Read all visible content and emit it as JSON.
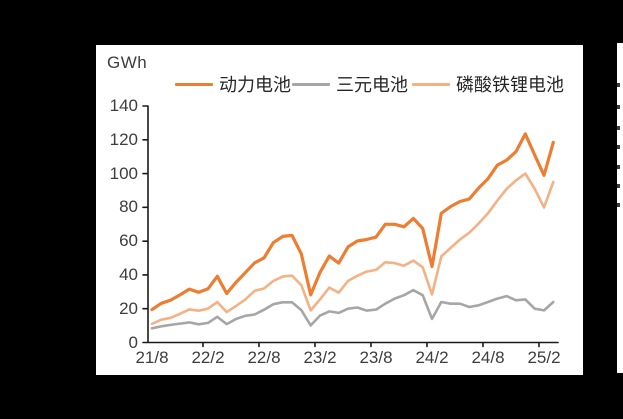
{
  "figure": {
    "background_color": "#000000",
    "panel_color": "#ffffff",
    "axis_color": "#1a1a1a",
    "label_color": "#3d3d3d"
  },
  "chart_data": {
    "type": "line",
    "title": "",
    "ylabel": "GWh",
    "xlabel": "",
    "ylim": [
      0,
      140
    ],
    "grid": false,
    "legend_position": "top",
    "y_ticks": [
      140,
      120,
      100,
      80,
      60,
      40,
      20,
      0
    ],
    "x_tick_labels": [
      "21/8",
      "22/2",
      "22/8",
      "23/2",
      "23/8",
      "24/2",
      "24/8",
      "25/2"
    ],
    "x": [
      "21/8",
      "21/9",
      "21/10",
      "21/11",
      "21/12",
      "22/1",
      "22/2",
      "22/3",
      "22/4",
      "22/5",
      "22/6",
      "22/7",
      "22/8",
      "22/9",
      "22/10",
      "22/11",
      "22/12",
      "23/1",
      "23/2",
      "23/3",
      "23/4",
      "23/5",
      "23/6",
      "23/7",
      "23/8",
      "23/9",
      "23/10",
      "23/11",
      "23/12",
      "24/1",
      "24/2",
      "24/3",
      "24/4",
      "24/5",
      "24/6",
      "24/7",
      "24/8",
      "24/9",
      "24/10",
      "24/11",
      "24/12",
      "25/1",
      "25/2",
      "25/3"
    ],
    "series": [
      {
        "name": "动力电池",
        "color": "#ED7D31",
        "stroke_width": 3.2,
        "values": [
          19.5,
          23.2,
          25.1,
          28.2,
          31.6,
          29.7,
          31.8,
          39.2,
          29.0,
          35.6,
          41.3,
          47.2,
          50.1,
          59.1,
          62.8,
          63.4,
          52.5,
          28.2,
          41.5,
          51.2,
          47.0,
          56.6,
          60.1,
          61.0,
          62.4,
          70.0,
          70.0,
          68.5,
          73.5,
          67.5,
          45.0,
          76.5,
          80.5,
          83.5,
          85.0,
          91.5,
          97.0,
          105.0,
          108.0,
          113.0,
          123.5,
          111.0,
          99.0,
          118.5
        ]
      },
      {
        "name": "三元电池",
        "color": "#A6A6A6",
        "stroke_width": 2.6,
        "values": [
          8.4,
          9.6,
          10.4,
          11.2,
          11.9,
          10.8,
          11.6,
          15.2,
          10.9,
          13.9,
          15.8,
          16.6,
          19.4,
          22.7,
          23.8,
          23.8,
          19.2,
          10.1,
          15.9,
          18.4,
          17.5,
          20.0,
          20.7,
          18.9,
          19.5,
          23.0,
          26.0,
          28.0,
          31.0,
          28.0,
          14.0,
          24.0,
          23.0,
          23.0,
          21.0,
          22.0,
          24.0,
          26.0,
          27.5,
          25.0,
          25.5,
          20.0,
          19.0,
          24.0
        ]
      },
      {
        "name": "磷酸铁锂电池",
        "color": "#F4B183",
        "stroke_width": 2.6,
        "values": [
          11.1,
          13.5,
          14.6,
          17.0,
          19.6,
          18.8,
          20.1,
          24.0,
          18.0,
          21.6,
          25.5,
          30.6,
          32.0,
          36.5,
          39.0,
          39.6,
          34.0,
          19.0,
          25.5,
          32.5,
          29.5,
          36.5,
          39.5,
          42.0,
          43.0,
          47.5,
          47.0,
          45.5,
          48.5,
          44.5,
          28.5,
          51.0,
          56.0,
          61.0,
          65.0,
          70.5,
          76.5,
          84.0,
          91.0,
          96.0,
          100.0,
          91.0,
          80.0,
          95.0
        ]
      }
    ]
  },
  "right_sliver": {
    "description": "edge of adjacent cropped panel",
    "fragment_y": [
      40,
      62,
      83,
      102,
      122,
      141,
      160
    ]
  }
}
